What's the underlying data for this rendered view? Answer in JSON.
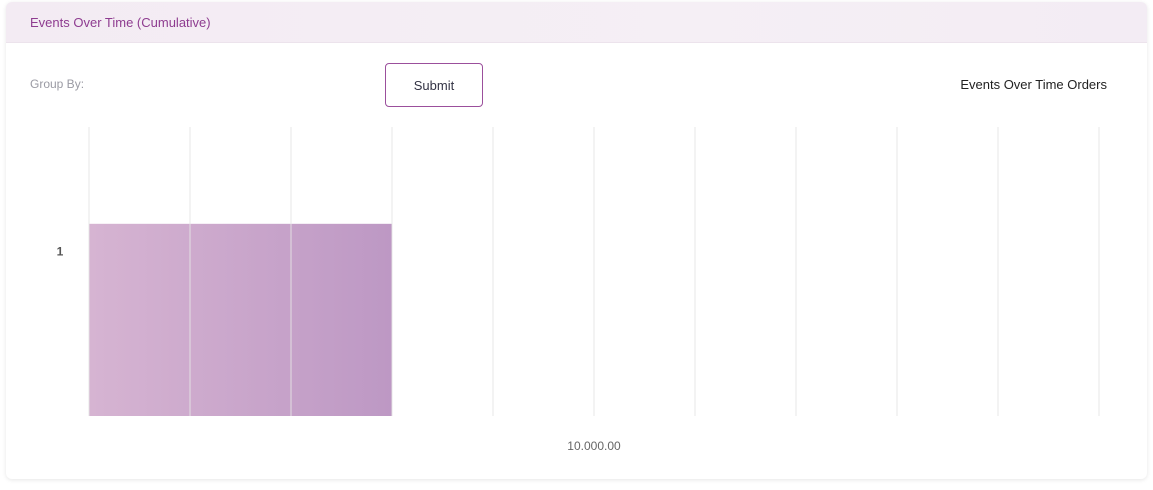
{
  "header": {
    "title": "Events Over Time (Cumulative)"
  },
  "controls": {
    "group_by_label": "Group By:",
    "submit_label": "Submit",
    "legend_label": "Events Over Time Orders"
  },
  "colors": {
    "accent": "#8e3c90",
    "bar_light": "#d6b4d2",
    "bar_dark": "#bd98c4",
    "grid": "#e4e4e4"
  },
  "chart_data": {
    "type": "bar",
    "orientation": "horizontal",
    "categories": [
      "1"
    ],
    "series": [
      {
        "name": "Events Over Time Orders",
        "values": [
          30000
        ]
      }
    ],
    "xlim": [
      0,
      100000
    ],
    "xticks_shown": [
      "10.000.00"
    ],
    "grid": true,
    "legend_position": "top-right"
  }
}
